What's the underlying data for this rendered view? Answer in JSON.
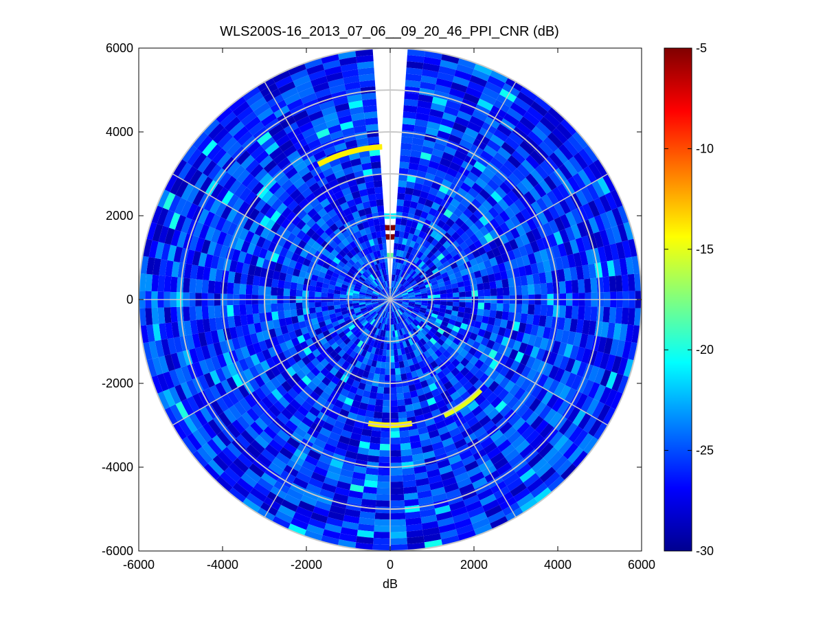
{
  "chart_data": {
    "type": "heatmap",
    "subtype": "polar-ppi-scan",
    "title": "WLS200S-16_2013_07_06__09_20_46_PPI_CNR (dB)",
    "xlabel": "dB",
    "ylabel": "",
    "xlim": [
      -6000,
      6000
    ],
    "ylim": [
      -6000,
      6000
    ],
    "x_ticks": [
      "-6000",
      "-4000",
      "-2000",
      "0",
      "2000",
      "4000",
      "6000"
    ],
    "y_ticks": [
      "6000",
      "4000",
      "2000",
      "0",
      "-2000",
      "-4000",
      "-6000"
    ],
    "max_range": 6000,
    "range_rings": [
      1000,
      2000,
      3000,
      4000,
      5000,
      6000
    ],
    "azimuth_spokes_deg": [
      0,
      30,
      60,
      90,
      120,
      150,
      180,
      210,
      240,
      270,
      300,
      330
    ],
    "data_gap_azimuth_deg": [
      -4,
      4
    ],
    "colorbar": {
      "colormap": "jet",
      "min": -30,
      "max": -5,
      "ticks": [
        "-5",
        "-10",
        "-15",
        "-20",
        "-25",
        "-30"
      ]
    },
    "background_cnr_db": -26,
    "features": [
      {
        "kind": "ring",
        "radius": 200,
        "cnr_db": -5
      },
      {
        "kind": "ring",
        "radius": 1500,
        "cnr_db": -5
      },
      {
        "kind": "ring",
        "radius": 1720,
        "cnr_db": -5
      },
      {
        "kind": "ring",
        "radius": 1050,
        "cnr_db": -18
      },
      {
        "kind": "ring",
        "radius": 2000,
        "cnr_db": -21
      },
      {
        "kind": "arc",
        "radius": 3050,
        "from_deg": 135,
        "to_deg": 155,
        "cnr_db": -15
      },
      {
        "kind": "arc",
        "radius": 3000,
        "from_deg": 170,
        "to_deg": 190,
        "cnr_db": -14
      },
      {
        "kind": "arc",
        "radius": 3650,
        "from_deg": 332,
        "to_deg": 357,
        "cnr_db": -14
      }
    ]
  }
}
